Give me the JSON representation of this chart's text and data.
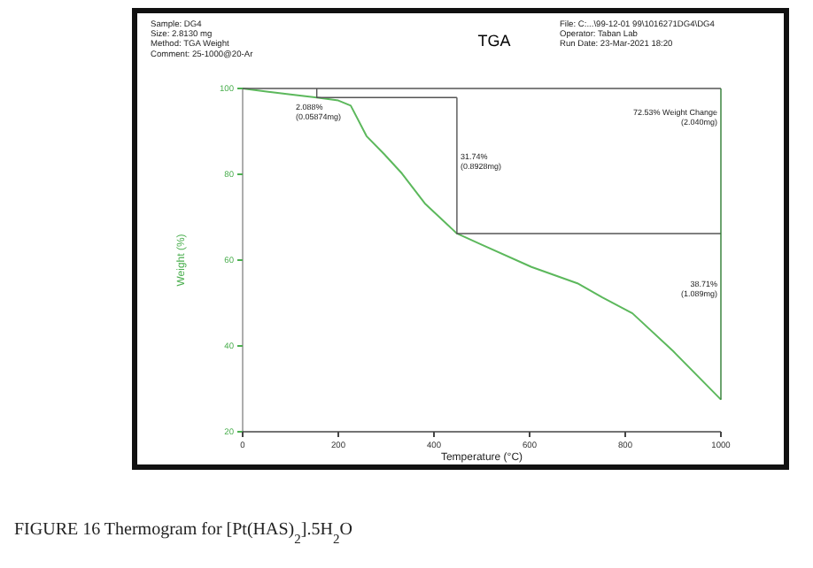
{
  "chart_data": {
    "type": "line",
    "title": "TGA",
    "xlabel": "Temperature (°C)",
    "ylabel": "Weight (%)",
    "x": [
      0,
      50,
      100,
      155,
      200,
      226,
      259,
      296,
      333,
      381,
      448,
      500,
      604,
      700,
      752,
      815,
      900,
      1000
    ],
    "series": [
      {
        "color": "#5cb85c",
        "values": [
          100,
          99.3,
          98.6,
          97.9,
          97.2,
          96,
          88.9,
          84.7,
          80.2,
          73.2,
          66.2,
          63.6,
          58.4,
          54.6,
          51.3,
          47.6,
          38.8,
          27.5
        ]
      },
      {
        "color": "#555555",
        "x": [
          0,
          1000
        ],
        "values": [
          100,
          100
        ]
      },
      {
        "color": "#555555",
        "x": [
          155,
          155,
          448
        ],
        "values": [
          100,
          97.9,
          97.9
        ]
      },
      {
        "color": "#555555",
        "x": [
          448,
          448,
          1000
        ],
        "values": [
          97.9,
          66.2,
          66.2
        ]
      },
      {
        "color": "#2e7d32",
        "x": [
          1000,
          1000
        ],
        "values": [
          100,
          27.5
        ]
      }
    ],
    "xlim": [
      0,
      1000
    ],
    "ylim": [
      20,
      100
    ],
    "xticks": [
      0,
      200,
      400,
      600,
      800,
      1000
    ],
    "yticks": [
      20,
      40,
      60,
      80,
      100
    ],
    "marker": "none",
    "grid": false,
    "annotations": [
      "2.088%\n(0.05874mg)",
      "31.74%\n(0.8928mg)",
      "38.71%\n(1.089mg)",
      "72.53% Weight Change\n(2.040mg)",
      "Sample: DG4\nSize: 2.8130 mg\nMethod: TGA Weight\nComment: 25-1000@20-Ar",
      "File: C:...\\99-12-01 99\\1016271DG4\\DG4\nOperator: Taban Lab\nRun Date: 23-Mar-2021 18:20",
      "FIGURE 16 Thermogram for [Pt(HAS)$_{2}$].5H$_{2}$O"
    ]
  }
}
